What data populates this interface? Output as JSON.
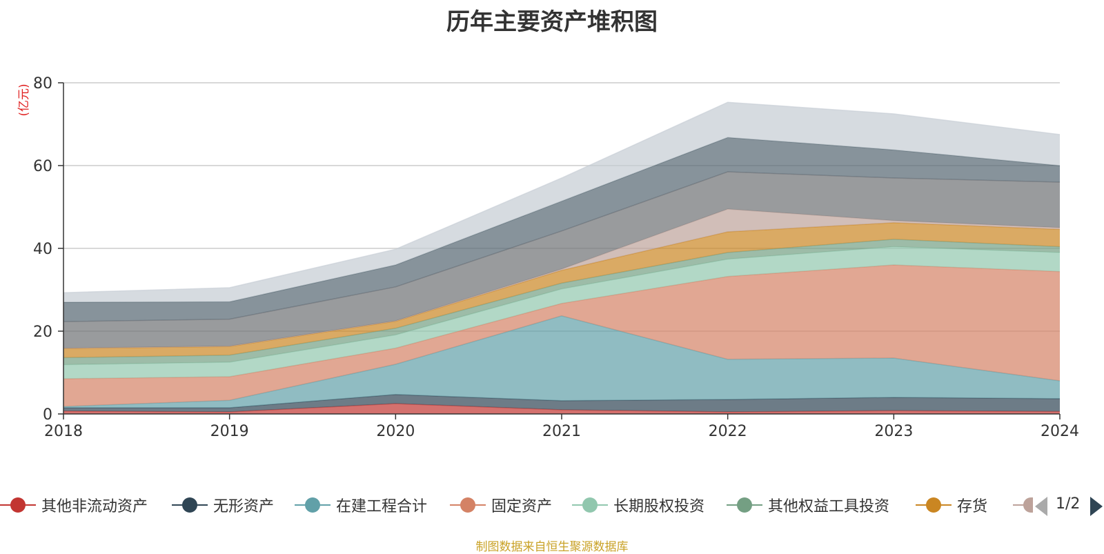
{
  "chart_data": {
    "type": "area",
    "stacked": true,
    "title": "历年主要资产堆积图",
    "ylabel": "(亿元)",
    "xlabel": "",
    "x": [
      "2018",
      "2019",
      "2020",
      "2021",
      "2022",
      "2023",
      "2024"
    ],
    "ylim": [
      0,
      80
    ],
    "yticks": [
      0,
      20,
      40,
      60,
      80
    ],
    "grid": true,
    "legend_position": "bottom",
    "series": [
      {
        "name": "其他非流动资产",
        "color": "#c23531",
        "values": [
          0.7,
          0.5,
          2.5,
          1.0,
          0.5,
          0.8,
          0.6
        ]
      },
      {
        "name": "无形资产",
        "color": "#2f4554",
        "values": [
          0.8,
          1.0,
          2.2,
          2.2,
          3.0,
          3.2,
          3.1
        ]
      },
      {
        "name": "在建工程合计",
        "color": "#61a0a8",
        "values": [
          0.3,
          1.8,
          7.3,
          20.5,
          9.7,
          9.5,
          4.3
        ]
      },
      {
        "name": "固定资产",
        "color": "#d48265",
        "values": [
          6.7,
          5.7,
          3.9,
          3.0,
          20.0,
          22.5,
          26.4
        ]
      },
      {
        "name": "长期股权投资",
        "color": "#91c7ae",
        "values": [
          3.4,
          3.5,
          3.2,
          3.5,
          4.2,
          4.4,
          4.6
        ]
      },
      {
        "name": "其他权益工具投资",
        "color": "#749f83",
        "values": [
          1.7,
          1.7,
          1.6,
          1.4,
          1.6,
          1.8,
          1.4
        ]
      },
      {
        "name": "存货",
        "color": "#ca8622",
        "values": [
          2.2,
          2.1,
          1.7,
          3.1,
          5.0,
          4.0,
          4.2
        ]
      },
      {
        "name": "",
        "color": "#bda29a",
        "values": [
          0.1,
          0.1,
          0.1,
          0.3,
          5.5,
          0.5,
          0.4
        ]
      },
      {
        "name": "",
        "color": "#6e7074",
        "values": [
          6.4,
          6.5,
          8.2,
          9.2,
          9.0,
          10.3,
          11.0
        ]
      },
      {
        "name": "",
        "color": "#546570",
        "values": [
          4.7,
          4.2,
          5.3,
          7.2,
          8.3,
          6.8,
          4.0
        ]
      },
      {
        "name": "",
        "color": "#c4ccd3",
        "values": [
          2.3,
          3.4,
          3.8,
          5.6,
          8.5,
          8.7,
          7.5
        ]
      }
    ]
  },
  "legend": {
    "page_label": "1/2"
  },
  "footer": {
    "source": "制图数据来自恒生聚源数据库"
  }
}
